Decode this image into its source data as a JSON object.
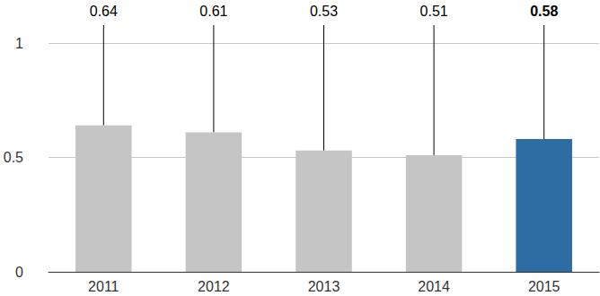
{
  "chart_data": {
    "type": "bar",
    "categories": [
      "2011",
      "2012",
      "2013",
      "2014",
      "2015"
    ],
    "values": [
      0.64,
      0.61,
      0.53,
      0.51,
      0.58
    ],
    "colors": [
      "#c4c5c4",
      "#c4c5c4",
      "#c4c5c4",
      "#c4c5c4",
      "#2e6da4"
    ],
    "ylim": [
      0,
      1
    ],
    "yticks": [
      0,
      0.5,
      1
    ],
    "grid": true,
    "data_labels": true
  }
}
